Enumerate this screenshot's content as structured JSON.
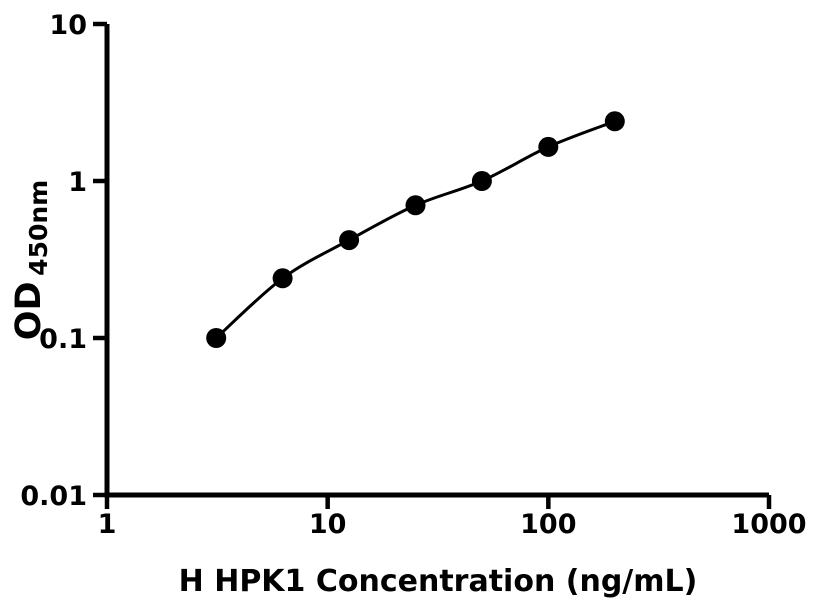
{
  "figure": {
    "background": "#ffffff",
    "ink_color": "#000000"
  },
  "chart_data": {
    "type": "scatter",
    "title": "",
    "xlabel": "H HPK1 Concentration (ng/mL)",
    "ylabel": "OD450nm",
    "ylabel_main": "OD",
    "ylabel_sub": "450nm",
    "xscale": "log",
    "yscale": "log",
    "xlim": [
      1,
      1000
    ],
    "ylim": [
      0.01,
      10
    ],
    "xticks": {
      "values": [
        1,
        10,
        100,
        1000
      ],
      "labels": [
        "1",
        "10",
        "100",
        "1000"
      ]
    },
    "yticks": {
      "values": [
        0.01,
        0.1,
        1,
        10
      ],
      "labels": [
        "0.01",
        "0.1",
        "1",
        "10"
      ]
    },
    "grid": false,
    "legend": null,
    "connect_points_with_fitted_curve": true,
    "marker": "circle",
    "marker_color": "#000000",
    "line_color": "#000000",
    "x": [
      3.125,
      6.25,
      12.5,
      25,
      50,
      100,
      200
    ],
    "y": [
      0.1,
      0.24,
      0.42,
      0.7,
      1.0,
      1.65,
      2.4
    ]
  }
}
